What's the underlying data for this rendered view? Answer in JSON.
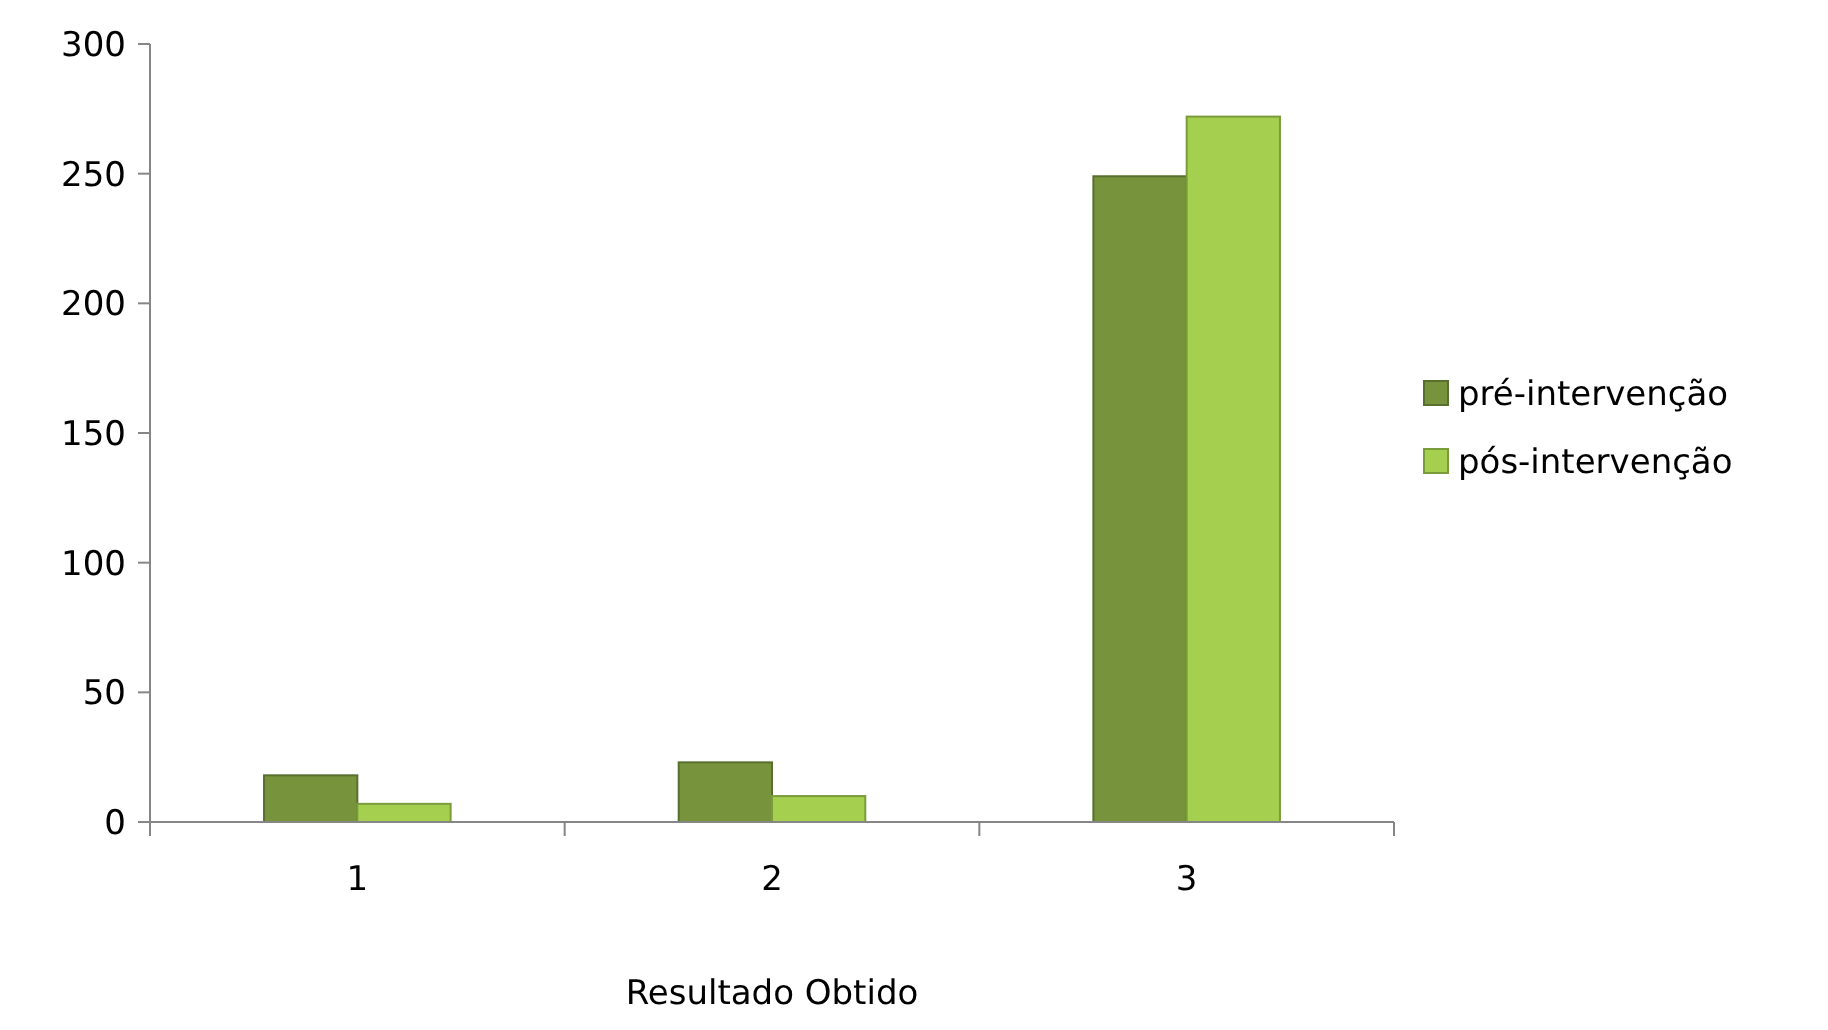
{
  "chart_data": {
    "type": "bar",
    "xlabel": "Resultado Obtido",
    "categories": [
      "1",
      "2",
      "3"
    ],
    "series": [
      {
        "name": "pré-intervenção",
        "color": "#77933c",
        "values": [
          18,
          23,
          249
        ]
      },
      {
        "name": "pós-intervenção",
        "color": "#a4cf4f",
        "values": [
          7,
          10,
          272
        ]
      }
    ],
    "ylim": [
      0,
      300
    ],
    "yticks": [
      0,
      50,
      100,
      150,
      200,
      250,
      300
    ],
    "grid": false,
    "legend": "right"
  }
}
